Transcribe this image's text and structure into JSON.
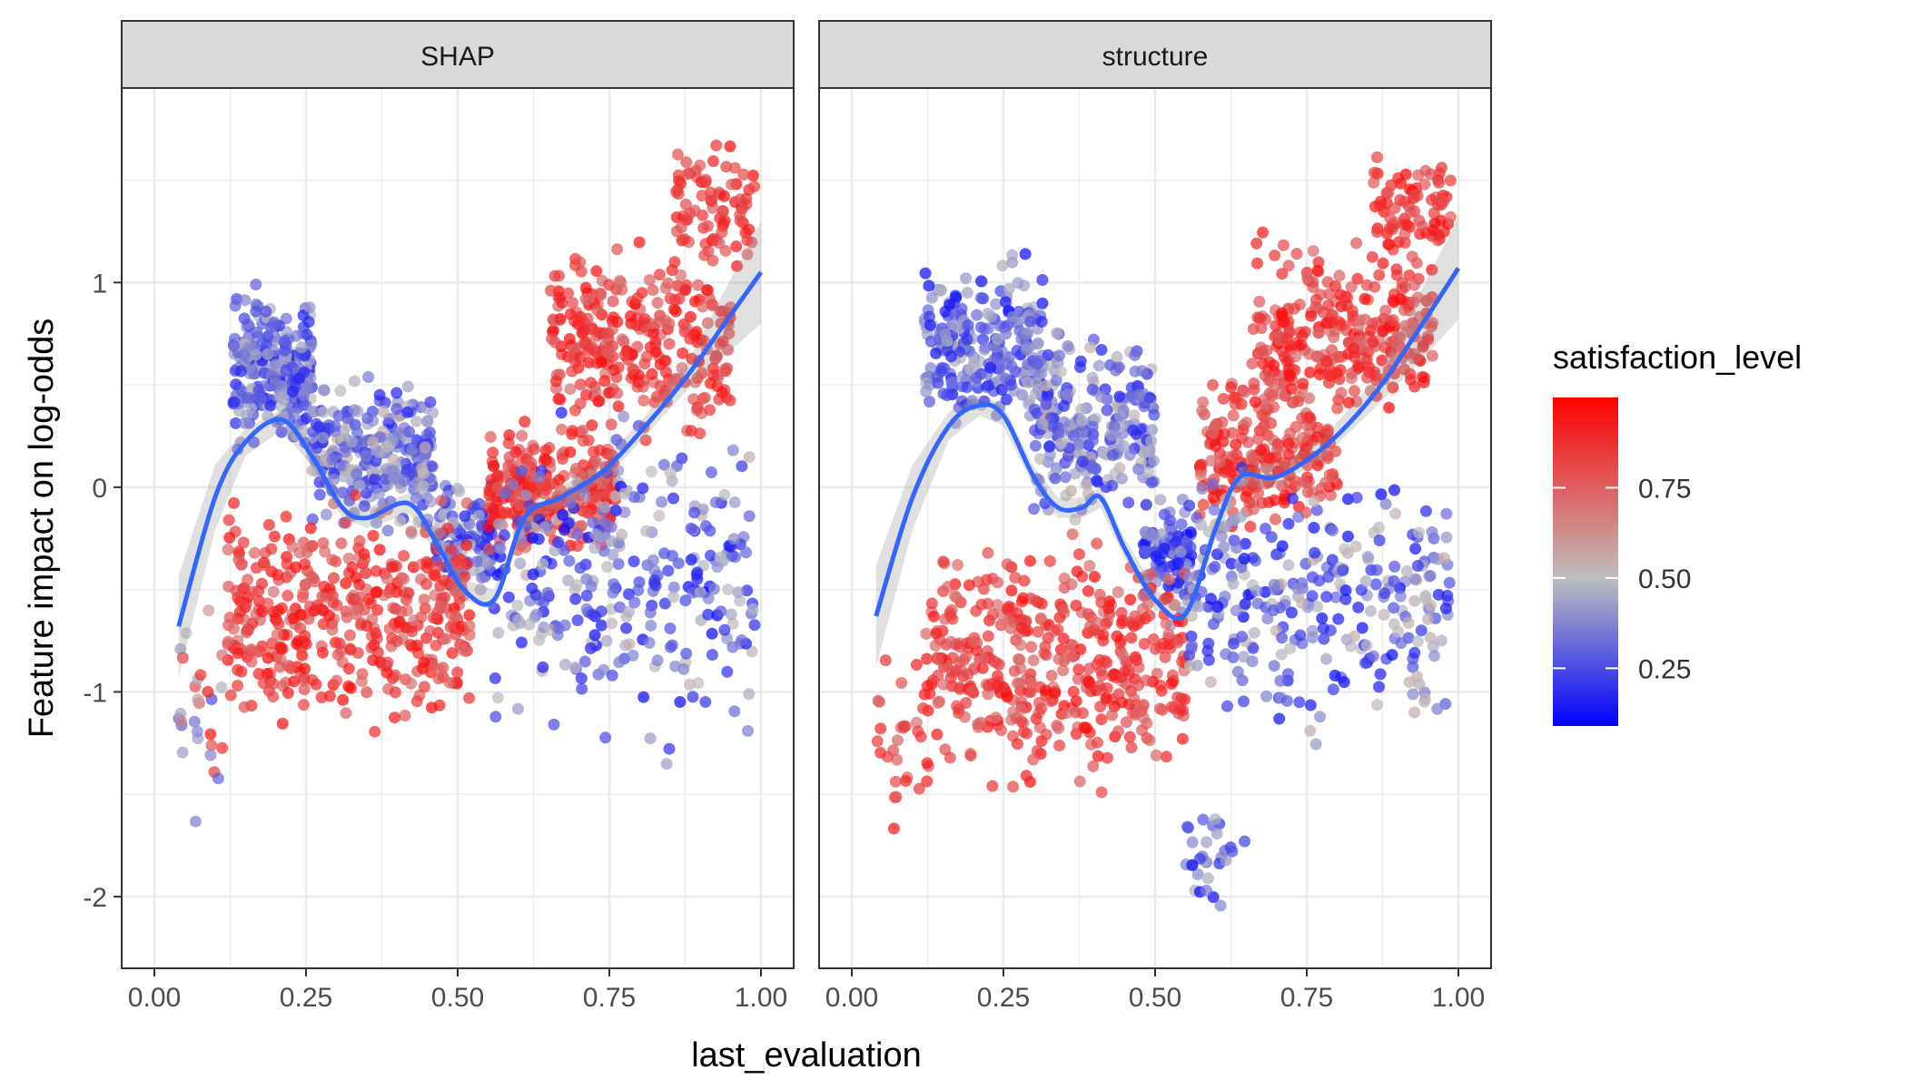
{
  "chart_data": {
    "type": "scatter",
    "xlabel": "last_evaluation",
    "ylabel": "Feature impact on log-odds",
    "xlim": [
      0.0,
      1.0
    ],
    "ylim": [
      -2.35,
      1.95
    ],
    "x_ticks": [
      0.0,
      0.25,
      0.5,
      0.75,
      1.0
    ],
    "x_tick_labels": [
      "0.00",
      "0.25",
      "0.50",
      "0.75",
      "1.00"
    ],
    "y_ticks": [
      -2,
      -1,
      0,
      1
    ],
    "y_tick_labels": [
      "-2",
      "-1",
      "0",
      "1"
    ],
    "grid": true,
    "legend": {
      "title": "satisfaction_level",
      "placement": "right",
      "range": [
        0.09,
        1.0
      ],
      "ticks": [
        0.25,
        0.5,
        0.75
      ],
      "tick_labels": [
        "0.25",
        "0.50",
        "0.75"
      ],
      "low_color": "#0000ff",
      "mid_color": "#bebebe",
      "high_color": "#ff0000",
      "mid_value": 0.5
    },
    "colors": {
      "smooth_line": "#3366ff",
      "strip_bg": "#d9d9d9",
      "grid": "#ebebeb",
      "panel_border": "#333333"
    },
    "panels": [
      {
        "strip": "SHAP",
        "smooth": {
          "x": [
            0.04,
            0.1,
            0.15,
            0.21,
            0.26,
            0.31,
            0.35,
            0.42,
            0.47,
            0.51,
            0.56,
            0.61,
            0.67,
            0.74,
            0.81,
            0.88,
            0.94,
            1.0
          ],
          "y": [
            -0.68,
            -0.05,
            0.22,
            0.33,
            0.15,
            -0.1,
            -0.15,
            -0.08,
            -0.3,
            -0.5,
            -0.55,
            -0.15,
            -0.05,
            0.08,
            0.3,
            0.55,
            0.8,
            1.05
          ]
        },
        "clusters": [
          {
            "x": [
              0.13,
              0.26
            ],
            "y": [
              0.1,
              1.05
            ],
            "sat": [
              0.15,
              0.5
            ],
            "n": 260
          },
          {
            "x": [
              0.26,
              0.46
            ],
            "y": [
              -0.3,
              0.6
            ],
            "sat": [
              0.15,
              0.55
            ],
            "n": 280
          },
          {
            "x": [
              0.46,
              0.56
            ],
            "y": [
              -0.6,
              0.1
            ],
            "sat": [
              0.12,
              0.5
            ],
            "n": 110
          },
          {
            "x": [
              0.12,
              0.52
            ],
            "y": [
              -1.3,
              0.05
            ],
            "sat": [
              0.7,
              0.98
            ],
            "n": 420
          },
          {
            "x": [
              0.55,
              0.76
            ],
            "y": [
              -0.4,
              0.35
            ],
            "sat": [
              0.7,
              0.98
            ],
            "n": 260
          },
          {
            "x": [
              0.65,
              0.95
            ],
            "y": [
              0.1,
              1.3
            ],
            "sat": [
              0.7,
              0.98
            ],
            "n": 300
          },
          {
            "x": [
              0.86,
              0.99
            ],
            "y": [
              1.0,
              1.75
            ],
            "sat": [
              0.75,
              0.98
            ],
            "n": 80
          },
          {
            "x": [
              0.56,
              0.99
            ],
            "y": [
              -1.5,
              0.6
            ],
            "sat": [
              0.1,
              0.55
            ],
            "n": 300
          },
          {
            "x": [
              0.04,
              0.12
            ],
            "y": [
              -1.75,
              -0.4
            ],
            "sat": [
              0.2,
              0.95
            ],
            "n": 28
          }
        ]
      },
      {
        "strip": "structure",
        "smooth": {
          "x": [
            0.04,
            0.1,
            0.16,
            0.21,
            0.25,
            0.3,
            0.34,
            0.38,
            0.41,
            0.45,
            0.5,
            0.55,
            0.6,
            0.64,
            0.7,
            0.78,
            0.86,
            0.93,
            1.0
          ],
          "y": [
            -0.63,
            -0.05,
            0.3,
            0.4,
            0.35,
            0.05,
            -0.1,
            -0.1,
            -0.05,
            -0.3,
            -0.55,
            -0.62,
            -0.2,
            0.05,
            0.05,
            0.2,
            0.45,
            0.75,
            1.07
          ]
        },
        "clusters": [
          {
            "x": [
              0.12,
              0.32
            ],
            "y": [
              0.2,
              1.2
            ],
            "sat": [
              0.12,
              0.5
            ],
            "n": 240
          },
          {
            "x": [
              0.3,
              0.5
            ],
            "y": [
              -0.3,
              0.9
            ],
            "sat": [
              0.15,
              0.55
            ],
            "n": 260
          },
          {
            "x": [
              0.48,
              0.56
            ],
            "y": [
              -0.7,
              0.0
            ],
            "sat": [
              0.12,
              0.45
            ],
            "n": 90
          },
          {
            "x": [
              0.12,
              0.55
            ],
            "y": [
              -1.6,
              -0.1
            ],
            "sat": [
              0.7,
              0.98
            ],
            "n": 440
          },
          {
            "x": [
              0.57,
              0.8
            ],
            "y": [
              -0.3,
              0.6
            ],
            "sat": [
              0.7,
              0.98
            ],
            "n": 230
          },
          {
            "x": [
              0.66,
              0.96
            ],
            "y": [
              0.2,
              1.3
            ],
            "sat": [
              0.7,
              0.98
            ],
            "n": 300
          },
          {
            "x": [
              0.86,
              0.99
            ],
            "y": [
              1.0,
              1.7
            ],
            "sat": [
              0.75,
              0.98
            ],
            "n": 80
          },
          {
            "x": [
              0.55,
              0.99
            ],
            "y": [
              -1.4,
              0.3
            ],
            "sat": [
              0.1,
              0.55
            ],
            "n": 300
          },
          {
            "x": [
              0.55,
              0.65
            ],
            "y": [
              -2.15,
              -1.5
            ],
            "sat": [
              0.1,
              0.5
            ],
            "n": 30
          },
          {
            "x": [
              0.04,
              0.13
            ],
            "y": [
              -2.0,
              -0.5
            ],
            "sat": [
              0.7,
              0.95
            ],
            "n": 30
          }
        ]
      }
    ]
  }
}
